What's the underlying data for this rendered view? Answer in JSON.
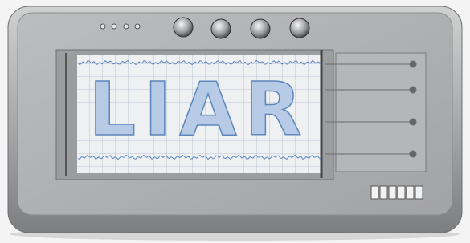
{
  "image": {
    "text": "LIAR"
  }
}
